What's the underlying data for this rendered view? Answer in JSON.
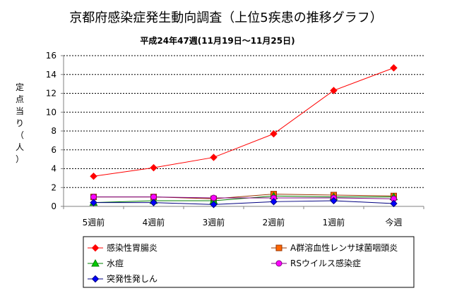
{
  "chart_data": {
    "type": "line",
    "title": "京都府感染症発生動向調査（上位5疾患の推移グラフ）",
    "subtitle": "平成24年47週(11月19日～11月25日)",
    "ylabel": [
      "定",
      "点",
      "当",
      "り",
      "（",
      "人",
      "）"
    ],
    "xlabel": "",
    "categories": [
      "5週前",
      "4週前",
      "3週前",
      "2週前",
      "1週前",
      "今週"
    ],
    "ylim": [
      0,
      16
    ],
    "yticks": [
      0,
      2,
      4,
      6,
      8,
      10,
      12,
      14,
      16
    ],
    "grid": true,
    "legend_position": "bottom",
    "series": [
      {
        "name": "感染性胃腸炎",
        "color": "#ff0000",
        "marker": "diamond",
        "values": [
          3.2,
          4.1,
          5.2,
          7.7,
          12.3,
          14.7
        ]
      },
      {
        "name": "A群溶血性レンサ球菌咽頭炎",
        "color": "#993300",
        "marker_fill": "#ff6600",
        "marker": "square",
        "values": [
          1.0,
          1.0,
          0.8,
          1.3,
          1.2,
          1.1
        ]
      },
      {
        "name": "水痘",
        "color": "#008000",
        "marker_fill": "#00cc00",
        "marker": "triangle",
        "values": [
          0.4,
          0.6,
          0.6,
          1.1,
          1.0,
          1.0
        ]
      },
      {
        "name": "RSウイルス感染症",
        "color": "#800080",
        "marker_fill": "#ff00ff",
        "marker": "circle",
        "values": [
          1.0,
          1.0,
          0.9,
          0.9,
          0.9,
          0.8
        ]
      },
      {
        "name": "突発性発しん",
        "color": "#000080",
        "marker_fill": "#0000ff",
        "marker": "diamond",
        "values": [
          0.4,
          0.4,
          0.2,
          0.5,
          0.6,
          0.3
        ]
      }
    ]
  }
}
